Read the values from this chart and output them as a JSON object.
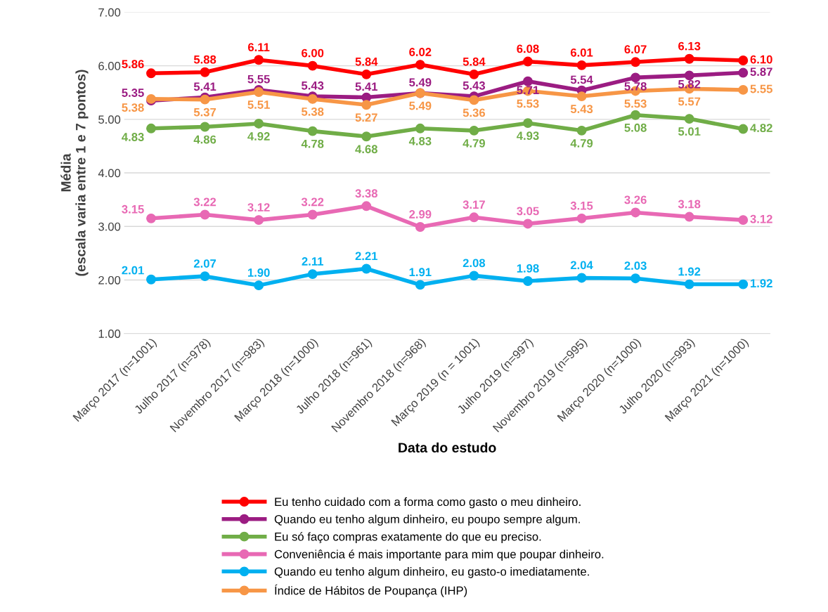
{
  "chart_data": {
    "type": "line",
    "xlabel": "Data do estudo",
    "ylabel": "Média\n(escala varia entre 1 e 7 pontos)",
    "categories": [
      "Março 2017 (n=1001)",
      "Julho 2017 (n=978)",
      "Novembro 2017 (n=983)",
      "Março 2018 (n=1000)",
      "Julho 2018 (n=961)",
      "Novembro 2018 (n=968)",
      "Março 2019 (n = 1001)",
      "Julho 2019 (n=997)",
      "Novembro 2019 (n=995)",
      "Março 2020 (n=1000)",
      "Julho 2020 (n=993)",
      "Março 2021 (n=1000)"
    ],
    "series": [
      {
        "name": "Eu tenho cuidado com a forma como gasto o meu dinheiro.",
        "color": "#ff0000",
        "values": [
          5.86,
          5.88,
          6.11,
          6.0,
          5.84,
          6.02,
          5.84,
          6.08,
          6.01,
          6.07,
          6.13,
          6.1
        ],
        "value_labels": [
          "5.86",
          "5.88",
          "6.11",
          "6.00",
          "5.84",
          "6.02",
          "5.84",
          "6.08",
          "6.01",
          "6.07",
          "6.13",
          "6.10"
        ]
      },
      {
        "name": "Quando eu tenho algum dinheiro, eu poupo sempre algum.",
        "color": "#9b1c82",
        "values": [
          5.35,
          5.41,
          5.55,
          5.43,
          5.41,
          5.49,
          5.43,
          5.71,
          5.54,
          5.78,
          5.82,
          5.87
        ],
        "value_labels": [
          "5.35",
          "5.41",
          "5.55",
          "5.43",
          "5.41",
          "5.49",
          "5.43",
          "5.71",
          "5.54",
          "5.78",
          "5.82",
          "5.87"
        ]
      },
      {
        "name": "Eu só faço compras exatamente do que eu preciso.",
        "color": "#70ad47",
        "values": [
          4.83,
          4.86,
          4.92,
          4.78,
          4.68,
          4.83,
          4.79,
          4.93,
          4.79,
          5.08,
          5.01,
          4.82
        ],
        "value_labels": [
          "4.83",
          "4.86",
          "4.92",
          "4.78",
          "4.68",
          "4.83",
          "4.79",
          "4.93",
          "4.79",
          "5.08",
          "5.01",
          "4.82"
        ]
      },
      {
        "name": "Conveniência é mais importante para mim que poupar dinheiro.",
        "color": "#e869b4",
        "values": [
          3.15,
          3.22,
          3.12,
          3.22,
          3.38,
          2.99,
          3.17,
          3.05,
          3.15,
          3.26,
          3.18,
          3.12
        ],
        "value_labels": [
          "3.15",
          "3.22",
          "3.12",
          "3.22",
          "3.38",
          "2.99",
          "3.17",
          "3.05",
          "3.15",
          "3.26",
          "3.18",
          "3.12"
        ]
      },
      {
        "name": "Quando eu tenho algum dinheiro, eu gasto-o imediatamente.",
        "color": "#00b0f0",
        "values": [
          2.01,
          2.07,
          1.9,
          2.11,
          2.21,
          1.91,
          2.08,
          1.98,
          2.04,
          2.03,
          1.92,
          1.92
        ],
        "value_labels": [
          "2.01",
          "2.07",
          "1.90",
          "2.11",
          "2.21",
          "1.91",
          "2.08",
          "1.98",
          "2.04",
          "2.03",
          "1.92",
          "1.92"
        ]
      },
      {
        "name": "Índice de Hábitos de Poupança (IHP)",
        "color": "#f79646",
        "values": [
          5.38,
          5.37,
          5.51,
          5.38,
          5.27,
          5.49,
          5.36,
          5.53,
          5.43,
          5.53,
          5.57,
          5.55
        ],
        "value_labels": [
          "5.38",
          "5.37",
          "5.51",
          "5.38",
          "5.27",
          "5.49",
          "5.36",
          "5.53",
          "5.43",
          "5.53",
          "5.57",
          "5.55"
        ]
      }
    ],
    "ylim": [
      1,
      7
    ],
    "yticks": [
      {
        "value": 1,
        "label": "1.00"
      },
      {
        "value": 2,
        "label": "2.00"
      },
      {
        "value": 3,
        "label": "3.00"
      },
      {
        "value": 4,
        "label": "4.00"
      },
      {
        "value": 5,
        "label": "5.00"
      },
      {
        "value": 6,
        "label": "6.00"
      },
      {
        "value": 7,
        "label": "7.00"
      }
    ],
    "grid": "y",
    "legend": "bottom",
    "marker": "circle",
    "line_style": "solid"
  }
}
